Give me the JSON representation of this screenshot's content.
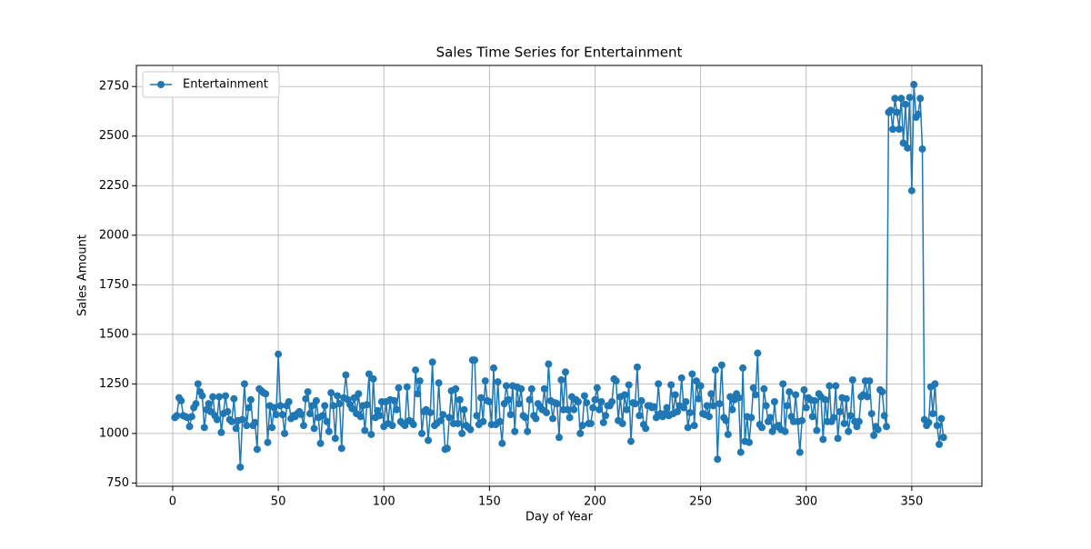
{
  "chart_data": {
    "type": "line",
    "title": "Sales Time Series for Entertainment",
    "xlabel": "Day of Year",
    "ylabel": "Sales Amount",
    "x": [
      1,
      2,
      3,
      4,
      5,
      6,
      7,
      8,
      9,
      10,
      11,
      12,
      13,
      14,
      15,
      16,
      17,
      18,
      19,
      20,
      21,
      22,
      23,
      24,
      25,
      26,
      27,
      28,
      29,
      30,
      31,
      32,
      33,
      34,
      35,
      36,
      37,
      38,
      39,
      40,
      41,
      42,
      43,
      44,
      45,
      46,
      47,
      48,
      49,
      50,
      51,
      52,
      53,
      54,
      55,
      56,
      57,
      58,
      59,
      60,
      61,
      62,
      63,
      64,
      65,
      66,
      67,
      68,
      69,
      70,
      71,
      72,
      73,
      74,
      75,
      76,
      77,
      78,
      79,
      80,
      81,
      82,
      83,
      84,
      85,
      86,
      87,
      88,
      89,
      90,
      91,
      92,
      93,
      94,
      95,
      96,
      97,
      98,
      99,
      100,
      101,
      102,
      103,
      104,
      105,
      106,
      107,
      108,
      109,
      110,
      111,
      112,
      113,
      114,
      115,
      116,
      117,
      118,
      119,
      120,
      121,
      122,
      123,
      124,
      125,
      126,
      127,
      128,
      129,
      130,
      131,
      132,
      133,
      134,
      135,
      136,
      137,
      138,
      139,
      140,
      141,
      142,
      143,
      144,
      145,
      146,
      147,
      148,
      149,
      150,
      151,
      152,
      153,
      154,
      155,
      156,
      157,
      158,
      159,
      160,
      161,
      162,
      163,
      164,
      165,
      166,
      167,
      168,
      169,
      170,
      171,
      172,
      173,
      174,
      175,
      176,
      177,
      178,
      179,
      180,
      181,
      182,
      183,
      184,
      185,
      186,
      187,
      188,
      189,
      190,
      191,
      192,
      193,
      194,
      195,
      196,
      197,
      198,
      199,
      200,
      201,
      202,
      203,
      204,
      205,
      206,
      207,
      208,
      209,
      210,
      211,
      212,
      213,
      214,
      215,
      216,
      217,
      218,
      219,
      220,
      221,
      222,
      223,
      224,
      225,
      226,
      227,
      228,
      229,
      230,
      231,
      232,
      233,
      234,
      235,
      236,
      237,
      238,
      239,
      240,
      241,
      242,
      243,
      244,
      245,
      246,
      247,
      248,
      249,
      250,
      251,
      252,
      253,
      254,
      255,
      256,
      257,
      258,
      259,
      260,
      261,
      262,
      263,
      264,
      265,
      266,
      267,
      268,
      269,
      270,
      271,
      272,
      273,
      274,
      275,
      276,
      277,
      278,
      279,
      280,
      281,
      282,
      283,
      284,
      285,
      286,
      287,
      288,
      289,
      290,
      291,
      292,
      293,
      294,
      295,
      296,
      297,
      298,
      299,
      300,
      301,
      302,
      303,
      304,
      305,
      306,
      307,
      308,
      309,
      310,
      311,
      312,
      313,
      314,
      315,
      316,
      317,
      318,
      319,
      320,
      321,
      322,
      323,
      324,
      325,
      326,
      327,
      328,
      329,
      330,
      331,
      332,
      333,
      334,
      335,
      336,
      337,
      338,
      339,
      340,
      341,
      342,
      343,
      344,
      345,
      346,
      347,
      348,
      349,
      350,
      351,
      352,
      353,
      354,
      355,
      356,
      357,
      358,
      359,
      360,
      361,
      362,
      363,
      364,
      365
    ],
    "series": [
      {
        "name": "Entertainment",
        "color": "#1f77b4",
        "values": [
          1080,
          1090,
          1180,
          1165,
          1090,
          1085,
          1080,
          1035,
          1085,
          1130,
          1150,
          1250,
          1210,
          1190,
          1030,
          1120,
          1150,
          1110,
          1185,
          1090,
          1070,
          1185,
          1005,
          1100,
          1190,
          1110,
          1070,
          1060,
          1175,
          1025,
          1065,
          830,
          1070,
          1250,
          1040,
          1130,
          1170,
          1040,
          1055,
          920,
          1225,
          1215,
          1205,
          1200,
          955,
          1140,
          1030,
          1130,
          1095,
          1400,
          1140,
          1095,
          1000,
          1140,
          1160,
          1075,
          1090,
          1085,
          1100,
          1110,
          1095,
          1040,
          1175,
          1210,
          1100,
          1140,
          1025,
          1165,
          1080,
          950,
          1090,
          1140,
          1060,
          1010,
          1205,
          1140,
          975,
          1190,
          1150,
          925,
          1180,
          1295,
          1170,
          1145,
          1125,
          1180,
          1100,
          1200,
          1085,
          1140,
          1015,
          1145,
          1300,
          995,
          1275,
          1080,
          1115,
          1090,
          1160,
          1035,
          1160,
          1050,
          1170,
          1040,
          1165,
          1120,
          1230,
          1060,
          1050,
          1040,
          1235,
          1065,
          1060,
          1045,
          1320,
          1200,
          1265,
          1000,
          1110,
          1120,
          965,
          1105,
          1360,
          1040,
          1050,
          1255,
          1065,
          1095,
          920,
          925,
          1080,
          1215,
          1050,
          1225,
          1050,
          1170,
          1000,
          1120,
          1040,
          1030,
          1020,
          1370,
          1370,
          1090,
          1045,
          1180,
          1060,
          1265,
          1165,
          1160,
          1045,
          1330,
          1045,
          1260,
          1060,
          950,
          1150,
          1240,
          1170,
          1095,
          1240,
          1010,
          1235,
          1150,
          1225,
          1090,
          1080,
          1010,
          1170,
          1225,
          1090,
          1075,
          1150,
          1135,
          1120,
          1225,
          1105,
          1350,
          1165,
          1075,
          1155,
          1150,
          980,
          1270,
          1120,
          1310,
          1120,
          1080,
          1185,
          1120,
          1170,
          1160,
          1000,
          1040,
          1190,
          1155,
          1050,
          1050,
          1130,
          1170,
          1230,
          1120,
          1160,
          1055,
          1090,
          1140,
          1140,
          1160,
          1275,
          1265,
          1065,
          1185,
          1050,
          1195,
          1120,
          1245,
          960,
          1155,
          1150,
          1335,
          1090,
          1165,
          1045,
          1025,
          1140,
          1140,
          1130,
          1135,
          1080,
          1250,
          1100,
          1085,
          1100,
          1130,
          1090,
          1245,
          1100,
          1195,
          1110,
          1140,
          1280,
          1130,
          1160,
          1030,
          1105,
          1300,
          1040,
          1265,
          1175,
          1240,
          1100,
          1095,
          1140,
          1085,
          1200,
          1140,
          1320,
          870,
          1150,
          1345,
          1080,
          1065,
          995,
          1185,
          1120,
          1170,
          1200,
          1180,
          905,
          1330,
          960,
          1085,
          955,
          1080,
          1230,
          1195,
          1405,
          1045,
          1030,
          1225,
          1140,
          1060,
          1080,
          1010,
          1160,
          1035,
          1040,
          1020,
          1250,
          1010,
          1140,
          1210,
          1085,
          1060,
          1195,
          1060,
          905,
          1065,
          1220,
          1130,
          1180,
          1170,
          1085,
          1165,
          1015,
          1200,
          1185,
          970,
          1170,
          1060,
          1240,
          1060,
          1080,
          1240,
          975,
          1110,
          1180,
          1050,
          1175,
          1010,
          1090,
          1270,
          1060,
          1035,
          1060,
          1185,
          1195,
          1265,
          1185,
          1265,
          1100,
          990,
          1035,
          1020,
          1220,
          1210,
          1090,
          1035,
          2620,
          2630,
          2535,
          2690,
          2620,
          2535,
          2690,
          2465,
          2660,
          2440,
          2695,
          2225,
          2760,
          2595,
          2610,
          2690,
          2435,
          1070,
          1040,
          1055,
          1235,
          1100,
          1250,
          1040,
          945,
          1075,
          980
        ]
      }
    ],
    "xlim": [
      -17.2,
      383.2
    ],
    "xticks": [
      0,
      50,
      100,
      150,
      200,
      250,
      300,
      350
    ],
    "ylim": [
      733.5,
      2856.5
    ],
    "yticks": [
      750,
      1000,
      1250,
      1500,
      1750,
      2000,
      2250,
      2500,
      2750
    ],
    "grid": true,
    "legend": "upper left"
  }
}
